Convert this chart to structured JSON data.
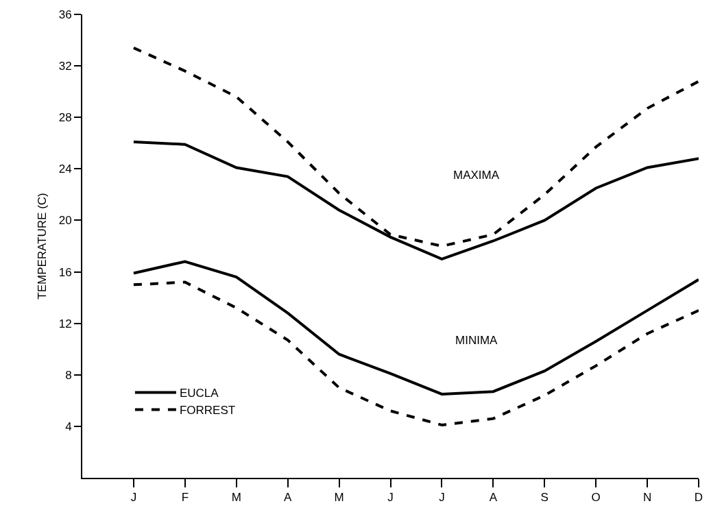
{
  "chart_data": {
    "type": "line",
    "ylabel": "TEMPERATURE (C)",
    "categories": [
      "J",
      "F",
      "M",
      "A",
      "M",
      "J",
      "J",
      "A",
      "S",
      "O",
      "N",
      "D"
    ],
    "series": [
      {
        "name": "EUCLA",
        "color": "#000000",
        "line_style": "solid",
        "values": [
          26.1,
          25.9,
          24.1,
          23.4,
          20.8,
          18.7,
          17.0,
          18.4,
          20.0,
          22.5,
          24.1,
          24.8
        ]
      },
      {
        "name": "FORREST",
        "color": "#000000",
        "line_style": "dashed",
        "values": [
          33.4,
          31.6,
          29.6,
          26.1,
          22.1,
          18.9,
          18.0,
          18.9,
          22.0,
          25.7,
          28.7,
          30.8
        ]
      },
      {
        "color": "#000000",
        "line_style": "solid",
        "values": [
          15.9,
          16.8,
          15.6,
          12.8,
          9.6,
          8.1,
          6.5,
          6.7,
          8.3,
          10.6,
          13.0,
          15.4
        ]
      },
      {
        "color": "#000000",
        "line_style": "dashed",
        "values": [
          15.0,
          15.2,
          13.2,
          10.7,
          7.0,
          5.2,
          4.1,
          4.6,
          6.4,
          8.7,
          11.2,
          13.0
        ]
      }
    ],
    "ylim": [
      0,
      36
    ],
    "yticks": [
      4,
      8,
      12,
      16,
      20,
      24,
      28,
      32,
      36
    ],
    "annotations": [
      "MAXIMA",
      "MINIMA"
    ],
    "legend": "bottom left",
    "marker": "none"
  }
}
